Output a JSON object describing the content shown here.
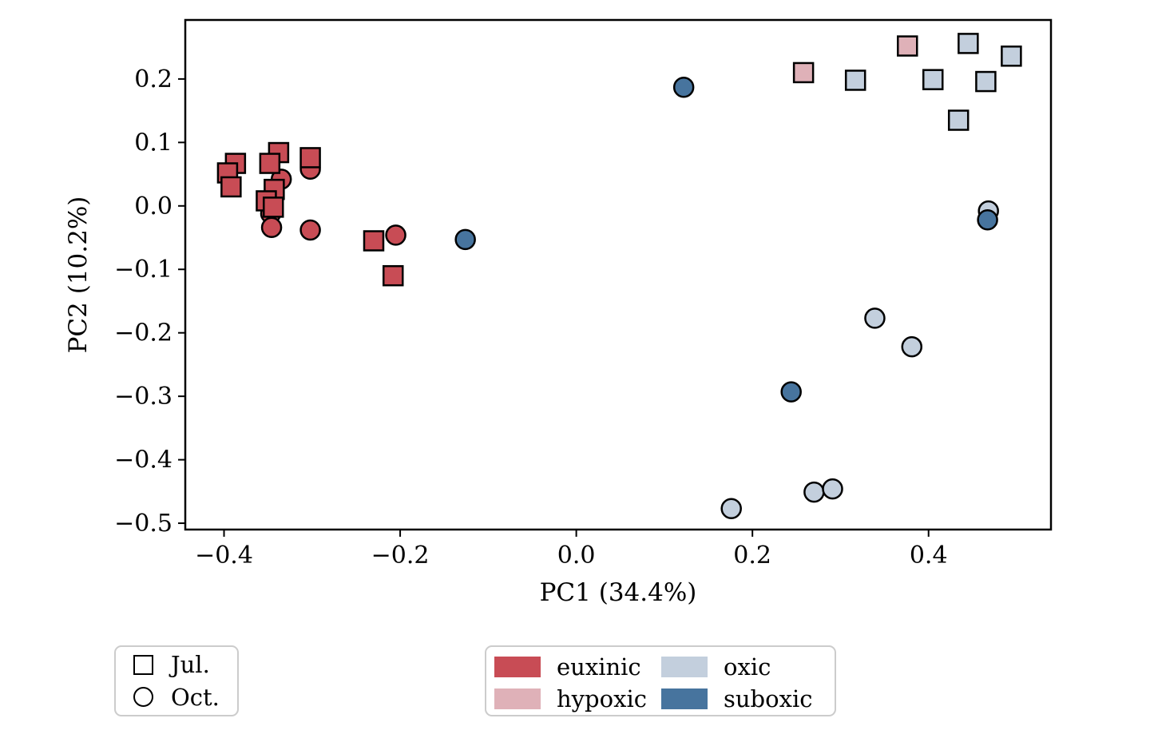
{
  "chart_data": {
    "type": "scatter",
    "title": "",
    "xlabel": "PC1 (34.4%)",
    "ylabel": "PC2 (10.2%)",
    "xlim": [
      -0.444,
      0.539
    ],
    "ylim": [
      -0.51,
      0.293
    ],
    "grid": false,
    "xticks": [
      {
        "value": -0.4,
        "label": "−0.4"
      },
      {
        "value": -0.2,
        "label": "−0.2"
      },
      {
        "value": 0.0,
        "label": "0.0"
      },
      {
        "value": 0.2,
        "label": "0.2"
      },
      {
        "value": 0.4,
        "label": "0.4"
      }
    ],
    "yticks": [
      {
        "value": 0.2,
        "label": "0.2"
      },
      {
        "value": 0.1,
        "label": "0.1"
      },
      {
        "value": 0.0,
        "label": "0.0"
      },
      {
        "value": -0.1,
        "label": "−0.1"
      },
      {
        "value": -0.2,
        "label": "−0.2"
      },
      {
        "value": -0.3,
        "label": "−0.3"
      },
      {
        "value": -0.4,
        "label": "−0.4"
      },
      {
        "value": -0.5,
        "label": "−0.5"
      }
    ],
    "series": [
      {
        "name": "euxinic-oct",
        "condition": "euxinic",
        "month": "Oct.",
        "marker": "circle",
        "color": "#c84c55",
        "points": [
          [
            -0.302,
            0.058
          ],
          [
            -0.335,
            0.042
          ],
          [
            -0.347,
            -0.012
          ],
          [
            -0.346,
            -0.034
          ],
          [
            -0.302,
            -0.038
          ],
          [
            -0.205,
            -0.046
          ]
        ]
      },
      {
        "name": "euxinic-jul",
        "condition": "euxinic",
        "month": "Jul.",
        "marker": "square",
        "color": "#c84c55",
        "points": [
          [
            -0.338,
            0.084
          ],
          [
            -0.387,
            0.067
          ],
          [
            -0.396,
            0.052
          ],
          [
            -0.392,
            0.03
          ],
          [
            -0.348,
            0.067
          ],
          [
            -0.302,
            0.076
          ],
          [
            -0.343,
            0.026
          ],
          [
            -0.352,
            0.008
          ],
          [
            -0.344,
            -0.002
          ],
          [
            -0.23,
            -0.055
          ],
          [
            -0.208,
            -0.11
          ]
        ]
      },
      {
        "name": "hypoxic-jul",
        "condition": "hypoxic",
        "month": "Jul.",
        "marker": "square",
        "color": "#dfb1b8",
        "points": [
          [
            0.258,
            0.21
          ],
          [
            0.376,
            0.252
          ]
        ]
      },
      {
        "name": "oxic-jul",
        "condition": "oxic",
        "month": "Jul.",
        "marker": "square",
        "color": "#c3cfdd",
        "points": [
          [
            0.317,
            0.198
          ],
          [
            0.405,
            0.199
          ],
          [
            0.445,
            0.256
          ],
          [
            0.465,
            0.196
          ],
          [
            0.494,
            0.236
          ],
          [
            0.434,
            0.135
          ]
        ]
      },
      {
        "name": "oxic-oct",
        "condition": "oxic",
        "month": "Oct.",
        "marker": "circle",
        "color": "#c3cfdd",
        "points": [
          [
            0.468,
            -0.008
          ],
          [
            0.339,
            -0.177
          ],
          [
            0.381,
            -0.222
          ],
          [
            0.27,
            -0.451
          ],
          [
            0.291,
            -0.446
          ],
          [
            0.176,
            -0.477
          ]
        ]
      },
      {
        "name": "suboxic-oct",
        "condition": "suboxic",
        "month": "Oct.",
        "marker": "circle",
        "color": "#47749e",
        "points": [
          [
            -0.126,
            -0.053
          ],
          [
            0.122,
            0.187
          ],
          [
            0.467,
            -0.022
          ],
          [
            0.244,
            -0.293
          ]
        ]
      }
    ]
  },
  "legend_months": {
    "items": [
      {
        "marker": "square",
        "label": "Jul."
      },
      {
        "marker": "circle",
        "label": "Oct."
      }
    ]
  },
  "legend_conditions": {
    "items": [
      {
        "label": "euxinic",
        "color": "#c84c55"
      },
      {
        "label": "hypoxic",
        "color": "#dfb1b8"
      },
      {
        "label": "oxic",
        "color": "#c3cfdd"
      },
      {
        "label": "suboxic",
        "color": "#47749e"
      }
    ]
  },
  "colors": {
    "marker_edge": "#000000",
    "axis": "#000000",
    "legend_border": "#cccccc",
    "background": "#ffffff"
  }
}
